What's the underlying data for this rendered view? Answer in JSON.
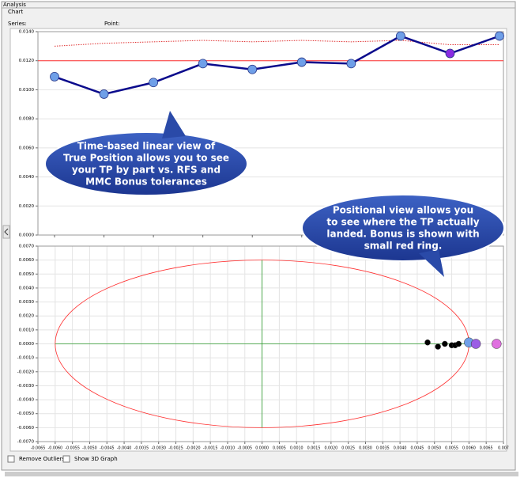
{
  "header": {
    "title": "Analysis",
    "tab": "Chart",
    "series_label": "Series:",
    "point_label": "Point:"
  },
  "chart_data": [
    {
      "type": "line",
      "categories": [
        null,
        null,
        null,
        null,
        null,
        null,
        null,
        null,
        null,
        null
      ],
      "series": [
        {
          "color": "#0a0a8c",
          "values": [
            0.0109,
            0.0097,
            0.0105,
            0.0118,
            0.0114,
            0.0119,
            0.0118,
            0.0137,
            0.0125,
            0.0137
          ],
          "point_colors": [
            "#6f9fe8",
            "#6f9fe8",
            "#6f9fe8",
            "#6f9fe8",
            "#6f9fe8",
            "#6f9fe8",
            "#6f9fe8",
            "#6f9fe8",
            "#8a2be2",
            "#6f9fe8"
          ]
        },
        {
          "color": "#e03030",
          "style": "dotted",
          "values": [
            0.013,
            0.0132,
            0.0133,
            0.0134,
            0.0133,
            0.0134,
            0.0133,
            0.0134,
            0.0131,
            0.0131
          ]
        }
      ],
      "reference_line": {
        "value": 0.012,
        "color": "#ff3030"
      },
      "ylim": [
        0,
        0.014
      ],
      "yticks": [
        {
          "value": 0,
          "label": "0.0000"
        },
        {
          "value": 0.002,
          "label": "0.0020"
        },
        {
          "value": 0.004,
          "label": "0.0040"
        },
        {
          "value": 0.006,
          "label": "0.0060"
        },
        {
          "value": 0.008,
          "label": "0.0080"
        },
        {
          "value": 0.01,
          "label": "0.0100"
        },
        {
          "value": 0.012,
          "label": "0.0120"
        },
        {
          "value": 0.014,
          "label": "0.0140"
        }
      ],
      "grid": true
    },
    {
      "type": "scatter",
      "tolerance_circle": {
        "radius": 0.006,
        "color": "#ff3030"
      },
      "crosshair_color": "#2a9a2a",
      "series": [
        {
          "color": "#000000",
          "x": [
            0.0048,
            0.0051,
            0.0053,
            0.0055,
            0.0056,
            0.0057
          ],
          "values": [
            0.0001,
            -0.0002,
            0,
            -0.0001,
            -0.0001,
            0
          ]
        },
        {
          "color": "#6f9fe8",
          "x": [
            0.006
          ],
          "values": [
            0.0001
          ]
        },
        {
          "color": "#9b5de5",
          "x": [
            0.0062
          ],
          "values": [
            0
          ]
        },
        {
          "color": "#e070e0",
          "x": [
            0.0068
          ],
          "values": [
            0
          ]
        }
      ],
      "xlim": [
        -0.0065,
        0.007
      ],
      "ylim": [
        -0.007,
        0.007
      ],
      "xticks": [
        {
          "value": -0.0065,
          "label": "-0.0065"
        },
        {
          "value": -0.006,
          "label": "-0.0060"
        },
        {
          "value": -0.0055,
          "label": "-0.0055"
        },
        {
          "value": -0.005,
          "label": "-0.0050"
        },
        {
          "value": -0.0045,
          "label": "-0.0045"
        },
        {
          "value": -0.004,
          "label": "-0.0040"
        },
        {
          "value": -0.0035,
          "label": "-0.0035"
        },
        {
          "value": -0.003,
          "label": "-0.0030"
        },
        {
          "value": -0.0025,
          "label": "-0.0025"
        },
        {
          "value": -0.002,
          "label": "-0.0020"
        },
        {
          "value": -0.0015,
          "label": "-0.0015"
        },
        {
          "value": -0.001,
          "label": "-0.0010"
        },
        {
          "value": -0.0005,
          "label": "-0.0005"
        },
        {
          "value": 0,
          "label": "0.0000"
        },
        {
          "value": 0.0005,
          "label": "0.0005"
        },
        {
          "value": 0.001,
          "label": "0.0010"
        },
        {
          "value": 0.0015,
          "label": "0.0015"
        },
        {
          "value": 0.002,
          "label": "0.0020"
        },
        {
          "value": 0.0025,
          "label": "0.0025"
        },
        {
          "value": 0.003,
          "label": "0.0030"
        },
        {
          "value": 0.0035,
          "label": "0.0035"
        },
        {
          "value": 0.004,
          "label": "0.0040"
        },
        {
          "value": 0.0045,
          "label": "0.0045"
        },
        {
          "value": 0.005,
          "label": "0.0050"
        },
        {
          "value": 0.0055,
          "label": "0.0055"
        },
        {
          "value": 0.006,
          "label": "0.0060"
        },
        {
          "value": 0.0065,
          "label": "0.0065"
        },
        {
          "value": 0.007,
          "label": "0.007"
        }
      ],
      "yticks": [
        {
          "value": -0.007,
          "label": "-0.0070"
        },
        {
          "value": -0.006,
          "label": "-0.0060"
        },
        {
          "value": -0.005,
          "label": "-0.0050"
        },
        {
          "value": -0.004,
          "label": "-0.0040"
        },
        {
          "value": -0.003,
          "label": "-0.0030"
        },
        {
          "value": -0.002,
          "label": "-0.0020"
        },
        {
          "value": -0.001,
          "label": "-0.0010"
        },
        {
          "value": 0,
          "label": "0.0000"
        },
        {
          "value": 0.001,
          "label": "0.0010"
        },
        {
          "value": 0.002,
          "label": "0.0020"
        },
        {
          "value": 0.003,
          "label": "0.0030"
        },
        {
          "value": 0.004,
          "label": "0.0040"
        },
        {
          "value": 0.005,
          "label": "0.0050"
        },
        {
          "value": 0.006,
          "label": "0.0060"
        },
        {
          "value": 0.007,
          "label": "0.0070"
        }
      ],
      "grid": true
    }
  ],
  "callouts": [
    {
      "lines": [
        "Time-based linear view of",
        "True Position allows you to see",
        "your TP by part vs. RFS and",
        "MMC Bonus tolerances"
      ]
    },
    {
      "lines": [
        "Positional view allows you",
        "to see where the TP actually",
        "landed. Bonus is shown with",
        "small red ring."
      ]
    }
  ],
  "options": [
    "Remove Outliers",
    "Show 3D Graph"
  ]
}
